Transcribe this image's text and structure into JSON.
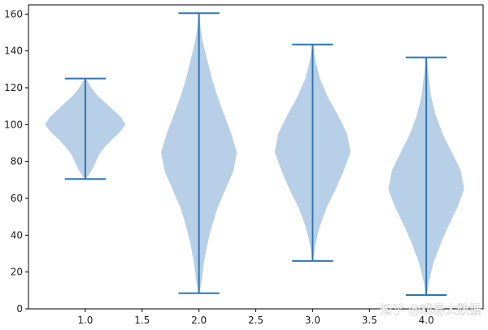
{
  "chart_data": {
    "type": "violin",
    "title": "",
    "xlabel": "",
    "ylabel": "",
    "xlim": [
      0.5,
      4.5
    ],
    "ylim": [
      0,
      165
    ],
    "xticks": [
      "1.0",
      "1.5",
      "2.0",
      "2.5",
      "3.0",
      "3.5",
      "4.0"
    ],
    "xtick_values": [
      1.0,
      1.5,
      2.0,
      2.5,
      3.0,
      3.5,
      4.0
    ],
    "yticks": [
      "0",
      "20",
      "40",
      "60",
      "80",
      "100",
      "120",
      "140",
      "160"
    ],
    "ytick_values": [
      0,
      20,
      40,
      60,
      80,
      100,
      120,
      140,
      160
    ],
    "grid": false,
    "fill_color": "#b7d0e8",
    "line_color": "#2f76ae",
    "violins": [
      {
        "position": 1.0,
        "min": 70.5,
        "max": 125,
        "profile_y": [
          70.5,
          73,
          76,
          80,
          84,
          88,
          92,
          96,
          100,
          104,
          108,
          112,
          116,
          120,
          123,
          125
        ],
        "profile_width": [
          0,
          0.03,
          0.06,
          0.09,
          0.12,
          0.17,
          0.23,
          0.3,
          0.35,
          0.31,
          0.24,
          0.17,
          0.1,
          0.05,
          0.02,
          0
        ]
      },
      {
        "position": 2.0,
        "min": 8.5,
        "max": 160.5,
        "profile_y": [
          8.5,
          15,
          25,
          35,
          45,
          55,
          65,
          75,
          85,
          95,
          105,
          115,
          125,
          135,
          145,
          153,
          160.5
        ],
        "profile_width": [
          0,
          0.02,
          0.04,
          0.07,
          0.11,
          0.16,
          0.23,
          0.3,
          0.33,
          0.28,
          0.22,
          0.16,
          0.11,
          0.07,
          0.03,
          0.01,
          0
        ]
      },
      {
        "position": 3.0,
        "min": 26,
        "max": 143.5,
        "profile_y": [
          26,
          35,
          45,
          55,
          65,
          75,
          85,
          95,
          105,
          115,
          125,
          135,
          143.5
        ],
        "profile_width": [
          0,
          0.02,
          0.06,
          0.12,
          0.2,
          0.27,
          0.33,
          0.3,
          0.22,
          0.13,
          0.06,
          0.02,
          0
        ]
      },
      {
        "position": 4.0,
        "min": 7.5,
        "max": 136.5,
        "profile_y": [
          7.5,
          15,
          25,
          35,
          45,
          55,
          65,
          75,
          85,
          95,
          105,
          115,
          125,
          136.5
        ],
        "profile_width": [
          0,
          0.02,
          0.06,
          0.12,
          0.19,
          0.27,
          0.33,
          0.3,
          0.22,
          0.14,
          0.08,
          0.04,
          0.02,
          0
        ]
      }
    ]
  },
  "watermark": {
    "text": "知乎 @戏易大数据"
  }
}
